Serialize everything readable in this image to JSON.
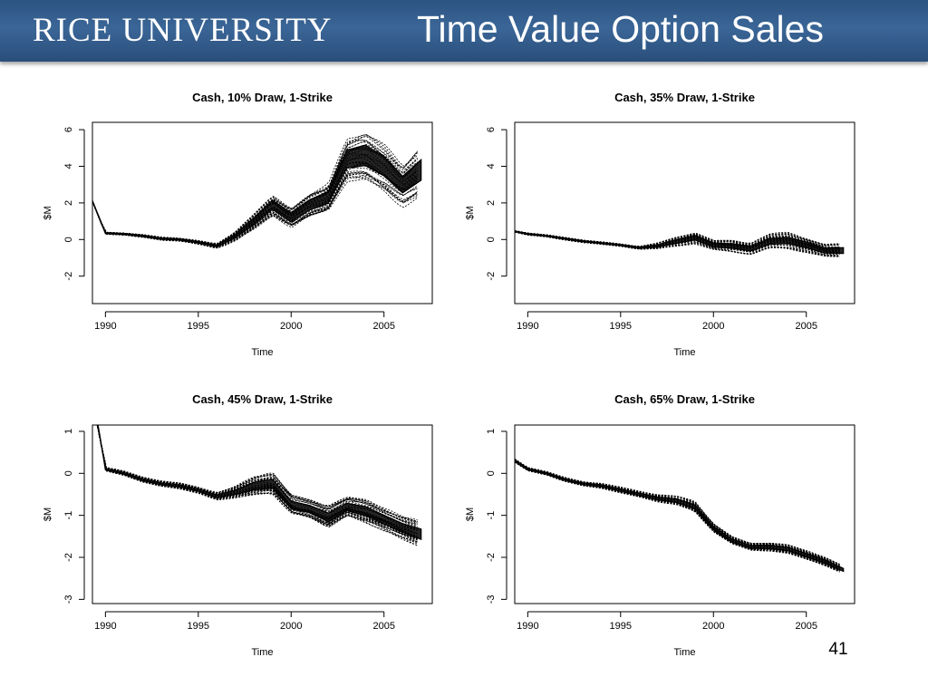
{
  "header": {
    "logo": "RICE UNIVERSITY",
    "title": "Time Value Option Sales"
  },
  "page_number": "41",
  "chart_data": [
    {
      "type": "line",
      "title": "Cash, 10% Draw, 1-Strike",
      "xlabel": "Time",
      "ylabel": "$M",
      "xlim": [
        1989.3,
        2007.6
      ],
      "ylim": [
        -3.5,
        6.4
      ],
      "xticks": [
        1990,
        1995,
        2000,
        2005
      ],
      "yticks": [
        -2,
        0,
        2,
        4,
        6
      ],
      "x": [
        1989.3,
        1990,
        1991,
        1992,
        1993,
        1994,
        1995,
        1996,
        1997,
        1998,
        1999,
        2000,
        2001,
        2002,
        2003,
        2004,
        2005,
        2006,
        2007
      ],
      "median": [
        2.1,
        0.35,
        0.3,
        0.2,
        0.05,
        0.0,
        -0.15,
        -0.35,
        0.2,
        1.0,
        1.9,
        1.2,
        1.9,
        2.3,
        4.4,
        4.6,
        4.0,
        3.0,
        3.8
      ],
      "spread": [
        0.05,
        0.08,
        0.08,
        0.1,
        0.1,
        0.1,
        0.12,
        0.15,
        0.3,
        0.5,
        0.7,
        0.7,
        0.8,
        0.9,
        1.4,
        1.6,
        1.5,
        1.3,
        1.6
      ],
      "grid": false
    },
    {
      "type": "line",
      "title": "Cash, 35% Draw, 1-Strike",
      "xlabel": "Time",
      "ylabel": "$M",
      "xlim": [
        1989.3,
        2007.6
      ],
      "ylim": [
        -3.5,
        6.4
      ],
      "xticks": [
        1990,
        1995,
        2000,
        2005
      ],
      "yticks": [
        -2,
        0,
        2,
        4,
        6
      ],
      "x": [
        1989.3,
        1990,
        1991,
        1992,
        1993,
        1994,
        1995,
        1996,
        1997,
        1998,
        1999,
        2000,
        2001,
        2002,
        2003,
        2004,
        2005,
        2006,
        2007
      ],
      "median": [
        0.45,
        0.3,
        0.2,
        0.05,
        -0.1,
        -0.2,
        -0.3,
        -0.45,
        -0.35,
        -0.1,
        0.1,
        -0.3,
        -0.35,
        -0.5,
        -0.1,
        -0.05,
        -0.3,
        -0.6,
        -0.6
      ],
      "spread": [
        0.05,
        0.07,
        0.07,
        0.08,
        0.08,
        0.08,
        0.08,
        0.1,
        0.2,
        0.3,
        0.35,
        0.3,
        0.35,
        0.35,
        0.45,
        0.5,
        0.45,
        0.4,
        0.45
      ],
      "grid": false
    },
    {
      "type": "line",
      "title": "Cash, 45% Draw, 1-Strike",
      "xlabel": "Time",
      "ylabel": "$M",
      "xlim": [
        1989.3,
        2007.6
      ],
      "ylim": [
        -3.1,
        1.15
      ],
      "xticks": [
        1990,
        1995,
        2000,
        2005
      ],
      "yticks": [
        -3,
        -2,
        -1,
        0,
        1
      ],
      "x": [
        1989.3,
        1989.6,
        1990,
        1991,
        1992,
        1993,
        1994,
        1995,
        1996,
        1997,
        1998,
        1999,
        2000,
        2001,
        2002,
        2003,
        2004,
        2005,
        2006,
        2007
      ],
      "median": [
        1.3,
        1.15,
        0.1,
        0.0,
        -0.15,
        -0.25,
        -0.3,
        -0.4,
        -0.55,
        -0.45,
        -0.3,
        -0.25,
        -0.75,
        -0.85,
        -1.05,
        -0.8,
        -0.9,
        -1.1,
        -1.3,
        -1.45
      ],
      "spread": [
        0.02,
        0.03,
        0.05,
        0.06,
        0.07,
        0.07,
        0.08,
        0.08,
        0.1,
        0.15,
        0.25,
        0.3,
        0.25,
        0.25,
        0.3,
        0.25,
        0.3,
        0.3,
        0.3,
        0.35
      ],
      "grid": false
    },
    {
      "type": "line",
      "title": "Cash, 65% Draw, 1-Strike",
      "xlabel": "Time",
      "ylabel": "$M",
      "xlim": [
        1989.3,
        2007.6
      ],
      "ylim": [
        -3.1,
        1.15
      ],
      "xticks": [
        1990,
        1995,
        2000,
        2005
      ],
      "yticks": [
        -3,
        -2,
        -1,
        0,
        1
      ],
      "x": [
        1989.3,
        1990,
        1991,
        1992,
        1993,
        1994,
        1995,
        1996,
        1997,
        1998,
        1999,
        2000,
        2001,
        2002,
        2003,
        2004,
        2005,
        2006,
        2007
      ],
      "median": [
        0.3,
        0.1,
        0.0,
        -0.15,
        -0.25,
        -0.3,
        -0.4,
        -0.5,
        -0.6,
        -0.65,
        -0.8,
        -1.3,
        -1.6,
        -1.75,
        -1.75,
        -1.8,
        -1.95,
        -2.1,
        -2.3
      ],
      "spread": [
        0.05,
        0.05,
        0.05,
        0.06,
        0.06,
        0.07,
        0.08,
        0.08,
        0.1,
        0.12,
        0.15,
        0.12,
        0.1,
        0.1,
        0.12,
        0.12,
        0.12,
        0.12,
        0.1
      ],
      "grid": false
    }
  ]
}
